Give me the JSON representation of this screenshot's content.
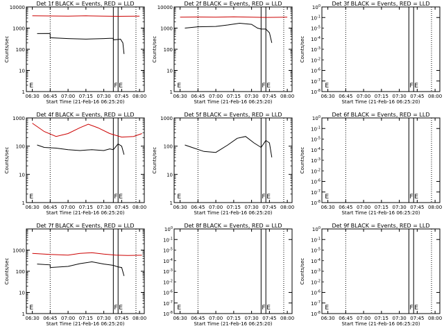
{
  "chart_data": [
    {
      "type": "line",
      "title": "Det 1f BLACK = Events, RED = LLD",
      "xlabel": "Start Time (21-Feb-16 06:25:20)",
      "ylabel": "Counts/sec",
      "yscale": "log",
      "ylim": [
        1,
        10000
      ],
      "yticks": [
        {
          "v": 1,
          "label": "1"
        },
        {
          "v": 10,
          "label": "10"
        },
        {
          "v": 100,
          "label": "100"
        },
        {
          "v": 1000,
          "label": "1000"
        },
        {
          "v": 10000,
          "label": "10000"
        }
      ],
      "xticks": [
        "06:30",
        "06:45",
        "07:00",
        "07:15",
        "07:30",
        "07:45",
        "08:00"
      ],
      "xlim": [
        "06:25",
        "08:04"
      ],
      "markers": [
        {
          "t": "06:27",
          "label": "E"
        },
        {
          "t": "07:38",
          "label": "F"
        },
        {
          "t": "07:42",
          "label": "E"
        }
      ],
      "dotted_lines": [
        "06:45",
        "07:57"
      ],
      "solid_lines": [
        "07:38",
        "07:42"
      ],
      "series": [
        {
          "color": "#cc0000",
          "x": [
            "06:30",
            "06:45",
            "07:00",
            "07:15",
            "07:30",
            "07:42",
            "07:50",
            "08:00"
          ],
          "values": [
            3800,
            3750,
            3700,
            3800,
            3700,
            3600,
            3650,
            3700
          ]
        },
        {
          "color": "#000000",
          "x": [
            "06:34",
            "06:45",
            "06:45",
            "07:00",
            "07:15",
            "07:30",
            "07:35",
            "07:38",
            "07:38",
            "07:42",
            "07:44",
            "07:46",
            "07:47"
          ],
          "values": [
            550,
            560,
            350,
            320,
            300,
            320,
            330,
            330,
            280,
            290,
            300,
            200,
            60
          ]
        }
      ]
    },
    {
      "type": "line",
      "title": "Det 2f BLACK = Events, RED = LLD",
      "xlabel": "Start Time (21-Feb-16 06:25:20)",
      "ylabel": "Counts/sec",
      "yscale": "log",
      "ylim": [
        1,
        10000
      ],
      "yticks": [
        {
          "v": 1,
          "label": "1"
        },
        {
          "v": 10,
          "label": "10"
        },
        {
          "v": 100,
          "label": "100"
        },
        {
          "v": 1000,
          "label": "1000"
        },
        {
          "v": 10000,
          "label": "10000"
        }
      ],
      "xticks": [
        "06:30",
        "06:45",
        "07:00",
        "07:15",
        "07:30",
        "07:45",
        "08:00"
      ],
      "xlim": [
        "06:25",
        "08:04"
      ],
      "markers": [
        {
          "t": "06:27",
          "label": "E"
        },
        {
          "t": "07:38",
          "label": "F"
        },
        {
          "t": "07:42",
          "label": "E"
        }
      ],
      "dotted_lines": [
        "06:45",
        "07:57"
      ],
      "solid_lines": [
        "07:38",
        "07:42"
      ],
      "series": [
        {
          "color": "#cc0000",
          "x": [
            "06:30",
            "06:45",
            "07:00",
            "07:15",
            "07:30",
            "07:42",
            "08:00"
          ],
          "values": [
            3300,
            3350,
            3300,
            3400,
            3300,
            3200,
            3300
          ]
        },
        {
          "color": "#000000",
          "x": [
            "06:34",
            "06:45",
            "07:00",
            "07:10",
            "07:20",
            "07:30",
            "07:35",
            "07:38",
            "07:42",
            "07:45",
            "07:47"
          ],
          "values": [
            1000,
            1150,
            1200,
            1400,
            1700,
            1500,
            1000,
            900,
            900,
            600,
            200
          ]
        }
      ]
    },
    {
      "type": "line",
      "title": "Det 3f BLACK = Events, RED = LLD",
      "xlabel": "Start Time (21-Feb-16 06:25:20)",
      "ylabel": "Counts/sec",
      "yscale": "log",
      "ylim": [
        1e-08,
        1
      ],
      "yticks": [
        {
          "v": 1,
          "label": "10^0"
        },
        {
          "v": 0.1,
          "label": "10^-1"
        },
        {
          "v": 1e-06,
          "label": "10^-6"
        },
        {
          "v": 1e-07,
          "label": "10^-7"
        },
        {
          "v": 1e-08,
          "label": "10^-8"
        }
      ],
      "yticks_small": [
        "10^-2",
        "10^-3",
        "10^-4",
        "10^-5"
      ],
      "xticks": [
        "06:30",
        "06:45",
        "07:00",
        "07:15",
        "07:30",
        "07:45",
        "08:00"
      ],
      "xlim": [
        "06:25",
        "08:04"
      ],
      "markers": [
        {
          "t": "06:27",
          "label": "E"
        },
        {
          "t": "07:38",
          "label": "F"
        },
        {
          "t": "07:42",
          "label": "E"
        }
      ],
      "dotted_lines": [
        "06:45",
        "07:57"
      ],
      "solid_lines": [
        "07:38",
        "07:42"
      ],
      "series": []
    },
    {
      "type": "line",
      "title": "Det 4f BLACK = Events, RED = LLD",
      "xlabel": "Start Time (21-Feb-16 06:25:20)",
      "ylabel": "Counts/sec",
      "yscale": "log",
      "ylim": [
        1,
        1000
      ],
      "yticks": [
        {
          "v": 1,
          "label": "1"
        },
        {
          "v": 10,
          "label": "10"
        },
        {
          "v": 100,
          "label": "100"
        },
        {
          "v": 1000,
          "label": "1000"
        }
      ],
      "xticks": [
        "06:30",
        "06:45",
        "07:00",
        "07:15",
        "07:30",
        "07:45",
        "08:00"
      ],
      "xlim": [
        "06:25",
        "08:04"
      ],
      "markers": [
        {
          "t": "06:27",
          "label": "E"
        },
        {
          "t": "07:38",
          "label": "F"
        },
        {
          "t": "07:42",
          "label": "E"
        }
      ],
      "dotted_lines": [
        "06:45",
        "07:57"
      ],
      "solid_lines": [
        "07:38",
        "07:42"
      ],
      "series": [
        {
          "color": "#cc0000",
          "x": [
            "06:30",
            "06:40",
            "06:50",
            "07:00",
            "07:10",
            "07:17",
            "07:25",
            "07:35",
            "07:45",
            "07:55",
            "08:02"
          ],
          "values": [
            650,
            330,
            220,
            280,
            450,
            600,
            450,
            280,
            210,
            220,
            280
          ]
        },
        {
          "color": "#000000",
          "x": [
            "06:34",
            "06:40",
            "06:50",
            "07:00",
            "07:10",
            "07:20",
            "07:30",
            "07:35",
            "07:38",
            "07:42",
            "07:45",
            "07:47"
          ],
          "values": [
            110,
            90,
            85,
            75,
            70,
            75,
            70,
            80,
            75,
            120,
            100,
            50
          ]
        }
      ]
    },
    {
      "type": "line",
      "title": "Det 5f BLACK = Events, RED = LLD",
      "xlabel": "Start Time (21-Feb-16 06:25:20)",
      "ylabel": "Counts/sec",
      "yscale": "log",
      "ylim": [
        1,
        1000
      ],
      "yticks": [
        {
          "v": 1,
          "label": "1"
        },
        {
          "v": 10,
          "label": "10"
        },
        {
          "v": 100,
          "label": "100"
        },
        {
          "v": 1000,
          "label": "1000"
        }
      ],
      "xticks": [
        "06:30",
        "06:45",
        "07:00",
        "07:15",
        "07:30",
        "07:45",
        "08:00"
      ],
      "xlim": [
        "06:25",
        "08:04"
      ],
      "markers": [
        {
          "t": "06:27",
          "label": "E"
        },
        {
          "t": "07:38",
          "label": "F"
        },
        {
          "t": "07:42",
          "label": "E"
        }
      ],
      "dotted_lines": [
        "06:45",
        "07:57"
      ],
      "solid_lines": [
        "07:38",
        "07:42"
      ],
      "series": [
        {
          "color": "#000000",
          "x": [
            "06:34",
            "06:40",
            "06:50",
            "07:00",
            "07:10",
            "07:18",
            "07:25",
            "07:32",
            "07:38",
            "07:42",
            "07:45",
            "07:47"
          ],
          "values": [
            110,
            90,
            65,
            60,
            110,
            190,
            220,
            130,
            90,
            160,
            130,
            40
          ]
        }
      ]
    },
    {
      "type": "line",
      "title": "Det 6f BLACK = Events, RED = LLD",
      "xlabel": "Start Time (21-Feb-16 06:25:20)",
      "ylabel": "Counts/sec",
      "yscale": "log",
      "ylim": [
        1e-08,
        1
      ],
      "yticks": [
        {
          "v": 1,
          "label": "10^0"
        },
        {
          "v": 0.1,
          "label": "10^-1"
        },
        {
          "v": 1e-06,
          "label": "10^-6"
        },
        {
          "v": 1e-07,
          "label": "10^-7"
        },
        {
          "v": 1e-08,
          "label": "10^-8"
        }
      ],
      "yticks_small": [
        "10^-2",
        "10^-3",
        "10^-4",
        "10^-5"
      ],
      "xticks": [
        "06:30",
        "06:45",
        "07:00",
        "07:15",
        "07:30",
        "07:45",
        "08:00"
      ],
      "xlim": [
        "06:25",
        "08:04"
      ],
      "markers": [
        {
          "t": "06:27",
          "label": "E"
        },
        {
          "t": "07:38",
          "label": "F"
        },
        {
          "t": "07:42",
          "label": "E"
        }
      ],
      "dotted_lines": [
        "06:45",
        "07:57"
      ],
      "solid_lines": [
        "07:38",
        "07:42"
      ],
      "series": []
    },
    {
      "type": "line",
      "title": "Det 7f BLACK = Events, RED = LLD",
      "xlabel": "Start Time (21-Feb-16 06:25:20)",
      "ylabel": "Counts/sec",
      "yscale": "log",
      "ylim": [
        1,
        10000
      ],
      "yticks": [
        {
          "v": 1,
          "label": "1"
        },
        {
          "v": 10,
          "label": "10"
        },
        {
          "v": 100,
          "label": "100"
        },
        {
          "v": 1000,
          "label": "1000"
        }
      ],
      "xticks": [
        "06:30",
        "06:45",
        "07:00",
        "07:15",
        "07:30",
        "07:45",
        "08:00"
      ],
      "xlim": [
        "06:25",
        "08:04"
      ],
      "markers": [
        {
          "t": "06:27",
          "label": "E"
        },
        {
          "t": "07:38",
          "label": "F"
        },
        {
          "t": "07:42",
          "label": "E"
        }
      ],
      "dotted_lines": [
        "06:45",
        "07:57"
      ],
      "solid_lines": [
        "07:38",
        "07:42"
      ],
      "series": [
        {
          "color": "#cc0000",
          "x": [
            "06:30",
            "06:45",
            "07:00",
            "07:10",
            "07:20",
            "07:30",
            "07:40",
            "07:50",
            "08:02"
          ],
          "values": [
            700,
            620,
            580,
            700,
            750,
            650,
            580,
            560,
            570
          ]
        },
        {
          "color": "#000000",
          "x": [
            "06:34",
            "06:45",
            "06:45",
            "07:00",
            "07:10",
            "07:20",
            "07:30",
            "07:35",
            "07:38",
            "07:42",
            "07:45",
            "07:47"
          ],
          "values": [
            220,
            200,
            150,
            170,
            230,
            280,
            220,
            200,
            190,
            160,
            150,
            60
          ]
        }
      ]
    },
    {
      "type": "line",
      "title": "Det 8f BLACK = Events, RED = LLD",
      "xlabel": "Start Time (21-Feb-16 06:25:20)",
      "ylabel": "",
      "yscale": "log",
      "ylim": [
        1e-08,
        1
      ],
      "yticks": [
        {
          "v": 1,
          "label": "10^0"
        },
        {
          "v": 0.1,
          "label": "10^-1"
        },
        {
          "v": 1e-06,
          "label": "10^-6"
        },
        {
          "v": 1e-07,
          "label": "10^-7"
        },
        {
          "v": 1e-08,
          "label": "10^-8"
        }
      ],
      "yticks_small": [
        "10^-2",
        "10^-3",
        "10^-4",
        "10^-5"
      ],
      "xticks": [
        "06:30",
        "06:45",
        "07:00",
        "07:15",
        "07:30",
        "07:45",
        "08:00"
      ],
      "xlim": [
        "06:25",
        "08:04"
      ],
      "markers": [
        {
          "t": "06:27",
          "label": "E"
        },
        {
          "t": "07:38",
          "label": "F"
        },
        {
          "t": "07:42",
          "label": "E"
        }
      ],
      "dotted_lines": [
        "06:45",
        "07:57"
      ],
      "solid_lines": [
        "07:38",
        "07:42"
      ],
      "series": []
    },
    {
      "type": "line",
      "title": "Det 9f BLACK = Events, RED = LLD",
      "xlabel": "Start Time (21-Feb-16 06:25:20)",
      "ylabel": "Counts/sec",
      "yscale": "log",
      "ylim": [
        1e-08,
        1
      ],
      "yticks": [
        {
          "v": 1,
          "label": "10^0"
        },
        {
          "v": 0.1,
          "label": "10^-1"
        },
        {
          "v": 1e-06,
          "label": "10^-6"
        },
        {
          "v": 1e-07,
          "label": "10^-7"
        },
        {
          "v": 1e-08,
          "label": "10^-8"
        }
      ],
      "yticks_small": [
        "10^-2",
        "10^-3",
        "10^-4",
        "10^-5"
      ],
      "xticks": [
        "06:30",
        "06:45",
        "07:00",
        "07:15",
        "07:30",
        "07:45",
        "08:00"
      ],
      "xlim": [
        "06:25",
        "08:04"
      ],
      "markers": [
        {
          "t": "06:27",
          "label": "E"
        },
        {
          "t": "07:38",
          "label": "F"
        },
        {
          "t": "07:42",
          "label": "E"
        }
      ],
      "dotted_lines": [
        "06:45",
        "07:57"
      ],
      "solid_lines": [
        "07:38",
        "07:42"
      ],
      "series": []
    }
  ]
}
